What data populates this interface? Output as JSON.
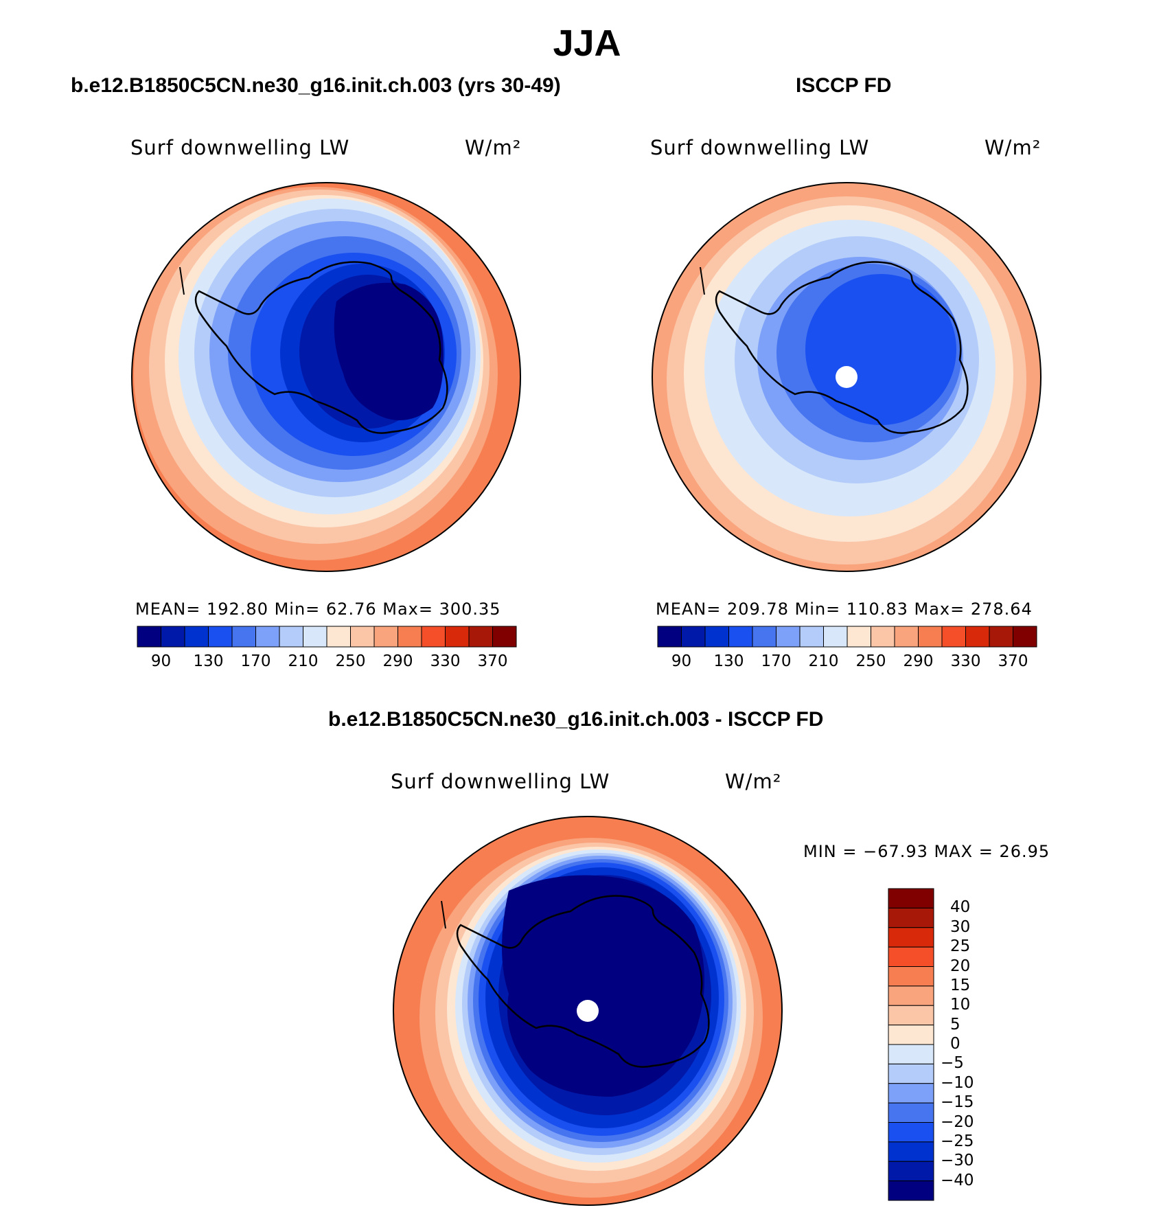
{
  "title": "JJA",
  "colors": {
    "scale": [
      "#000080",
      "#0019a8",
      "#0032d0",
      "#1a50f0",
      "#4775f0",
      "#7da0f8",
      "#b4ccfa",
      "#d8e8fa",
      "#fde6d2",
      "#fbc6a8",
      "#f9a47d",
      "#f77e50",
      "#f54f2a",
      "#d82a0a",
      "#a81808",
      "#800000"
    ],
    "outline": "#000000"
  },
  "panels": {
    "model": {
      "title": "b.e12.B1850C5CN.ne30_g16.init.ch.003 (yrs 30-49)",
      "variable": "Surf downwelling LW",
      "units": "W/m²",
      "stats": "MEAN=  192.80   Min=    62.76   Max=  300.35",
      "colorbar_ticks": [
        "90",
        "130",
        "170",
        "210",
        "250",
        "290",
        "330",
        "370"
      ]
    },
    "obs": {
      "title": "ISCCP FD",
      "variable": "Surf downwelling LW",
      "units": "W/m²",
      "stats": "MEAN=  209.78   Min=  110.83   Max=  278.64",
      "colorbar_ticks": [
        "90",
        "130",
        "170",
        "210",
        "250",
        "290",
        "330",
        "370"
      ]
    },
    "diff": {
      "title": "b.e12.B1850C5CN.ne30_g16.init.ch.003 - ISCCP FD",
      "variable": "Surf downwelling LW",
      "units": "W/m²",
      "stats": "MIN = −67.93 MAX =   26.95",
      "colorbar_ticks": [
        "40",
        "30",
        "25",
        "20",
        "15",
        "10",
        "5",
        "0",
        "−5",
        "−10",
        "−15",
        "−20",
        "−25",
        "−30",
        "−40"
      ]
    }
  }
}
